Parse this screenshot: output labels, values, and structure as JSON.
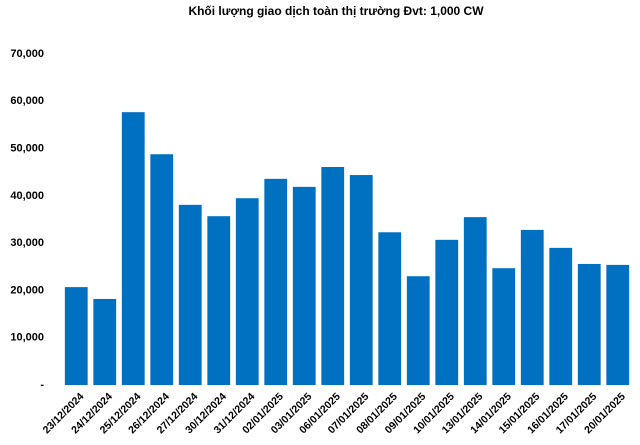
{
  "chart_data": {
    "type": "bar",
    "title": "Khối lượng giao dịch toàn thị trường Đvt: 1,000 CW",
    "categories": [
      "23/12/2024",
      "24/12/2024",
      "25/12/2024",
      "26/12/2024",
      "27/12/2024",
      "30/12/2024",
      "31/12/2024",
      "02/01/2025",
      "03/01/2025",
      "06/01/2025",
      "07/01/2025",
      "08/01/2025",
      "09/01/2025",
      "10/01/2025",
      "13/01/2025",
      "14/01/2025",
      "15/01/2025",
      "16/01/2025",
      "17/01/2025",
      "20/01/2025"
    ],
    "values": [
      20700,
      18200,
      57700,
      48800,
      38100,
      35700,
      39500,
      43600,
      41900,
      46100,
      44400,
      32300,
      23000,
      30700,
      35500,
      24700,
      32800,
      29000,
      25600,
      25400
    ],
    "color": "#0070c0",
    "ylim": [
      0,
      70000
    ],
    "yticks": [
      {
        "value": 0,
        "label": "-"
      },
      {
        "value": 10000,
        "label": "10,000"
      },
      {
        "value": 20000,
        "label": "20,000"
      },
      {
        "value": 30000,
        "label": "30,000"
      },
      {
        "value": 40000,
        "label": "40,000"
      },
      {
        "value": 50000,
        "label": "50,000"
      },
      {
        "value": 60000,
        "label": "60,000"
      },
      {
        "value": 70000,
        "label": "70,000"
      }
    ],
    "grid": false
  }
}
